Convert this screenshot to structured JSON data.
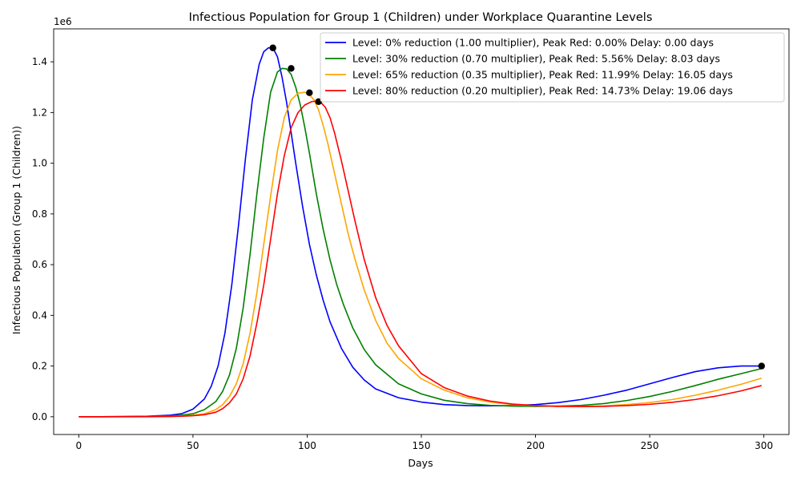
{
  "chart_data": {
    "type": "line",
    "title": "Infectious Population for Group 1 (Children) under Workplace Quarantine Levels",
    "xlabel": "Days",
    "ylabel": "Infectious Population (Group 1 (Children))",
    "y_offset_text": "1e6",
    "xlim": [
      -11,
      311
    ],
    "ylim": [
      -70000,
      1530000
    ],
    "x_ticks": [
      0,
      50,
      100,
      150,
      200,
      250,
      300
    ],
    "x_tick_labels": [
      "0",
      "50",
      "100",
      "150",
      "200",
      "250",
      "300"
    ],
    "y_ticks": [
      0,
      200000,
      400000,
      600000,
      800000,
      1000000,
      1200000,
      1400000
    ],
    "y_tick_labels": [
      "0.0",
      "0.2",
      "0.4",
      "0.6",
      "0.8",
      "1.0",
      "1.2",
      "1.4"
    ],
    "grid": false,
    "legend_position": "top-right",
    "series": [
      {
        "name": "Level: 0% reduction (1.00 multiplier), Peak Red: 0.00% Delay: 0.00 days",
        "color": "#0000ff",
        "x": [
          0,
          10,
          20,
          30,
          40,
          45,
          50,
          55,
          58,
          61,
          64,
          67,
          70,
          73,
          76,
          79,
          81,
          83,
          85,
          87,
          89,
          91,
          93,
          95,
          98,
          101,
          104,
          107,
          110,
          115,
          120,
          125,
          130,
          140,
          150,
          160,
          170,
          180,
          190,
          200,
          210,
          220,
          230,
          240,
          250,
          260,
          270,
          280,
          290,
          299
        ],
        "y": [
          0,
          0,
          1000,
          2000,
          6000,
          12000,
          30000,
          70000,
          120000,
          200000,
          330000,
          520000,
          760000,
          1020000,
          1250000,
          1390000,
          1440000,
          1455000,
          1455000,
          1420000,
          1340000,
          1240000,
          1120000,
          1000000,
          830000,
          680000,
          560000,
          460000,
          375000,
          270000,
          195000,
          145000,
          110000,
          75000,
          58000,
          48000,
          44000,
          43000,
          44000,
          48000,
          56000,
          68000,
          85000,
          105000,
          130000,
          155000,
          178000,
          193000,
          200000,
          200000
        ]
      },
      {
        "name": "Level: 30% reduction (0.70 multiplier), Peak Red: 5.56% Delay: 8.03 days",
        "color": "#008000",
        "x": [
          0,
          10,
          20,
          30,
          40,
          45,
          50,
          55,
          60,
          63,
          66,
          69,
          72,
          75,
          78,
          81,
          84,
          87,
          89,
          91,
          93,
          95,
          97,
          99,
          101,
          104,
          107,
          110,
          113,
          116,
          120,
          125,
          130,
          140,
          150,
          160,
          170,
          180,
          190,
          200,
          210,
          220,
          230,
          240,
          250,
          260,
          270,
          280,
          290,
          299
        ],
        "y": [
          0,
          0,
          500,
          1000,
          3000,
          6000,
          12000,
          28000,
          60000,
          100000,
          165000,
          270000,
          430000,
          640000,
          880000,
          1100000,
          1280000,
          1360000,
          1374000,
          1372000,
          1350000,
          1300000,
          1230000,
          1140000,
          1040000,
          880000,
          740000,
          620000,
          520000,
          440000,
          350000,
          265000,
          205000,
          130000,
          90000,
          65000,
          52000,
          45000,
          42000,
          41000,
          42000,
          45000,
          52000,
          64000,
          80000,
          100000,
          123000,
          148000,
          170000,
          190000
        ]
      },
      {
        "name": "Level: 65% reduction (0.35 multiplier), Peak Red: 11.99% Delay: 16.05 days",
        "color": "#ffa500",
        "x": [
          0,
          10,
          20,
          30,
          40,
          45,
          50,
          55,
          60,
          63,
          66,
          69,
          72,
          75,
          78,
          81,
          84,
          87,
          90,
          93,
          96,
          99,
          101,
          103,
          105,
          107,
          109,
          112,
          115,
          118,
          121,
          125,
          130,
          135,
          140,
          150,
          160,
          170,
          180,
          190,
          200,
          210,
          220,
          230,
          240,
          250,
          260,
          270,
          280,
          290,
          299
        ],
        "y": [
          0,
          0,
          0,
          500,
          1500,
          3000,
          6000,
          12000,
          28000,
          48000,
          80000,
          130000,
          210000,
          330000,
          490000,
          680000,
          870000,
          1050000,
          1180000,
          1250000,
          1276000,
          1280000,
          1270000,
          1250000,
          1210000,
          1150000,
          1080000,
          960000,
          840000,
          720000,
          620000,
          500000,
          380000,
          290000,
          230000,
          150000,
          105000,
          75000,
          58000,
          48000,
          43000,
          41000,
          41000,
          43000,
          48000,
          56000,
          68000,
          85000,
          105000,
          128000,
          152000
        ]
      },
      {
        "name": "Level: 80% reduction (0.20 multiplier), Peak Red: 14.73% Delay: 19.06 days",
        "color": "#ff0000",
        "x": [
          0,
          10,
          20,
          30,
          40,
          45,
          50,
          55,
          60,
          63,
          66,
          69,
          72,
          75,
          78,
          81,
          84,
          87,
          90,
          93,
          96,
          99,
          102,
          104,
          105,
          106,
          108,
          110,
          112,
          115,
          118,
          121,
          125,
          130,
          135,
          140,
          150,
          160,
          170,
          180,
          190,
          200,
          210,
          220,
          230,
          240,
          250,
          260,
          270,
          280,
          290,
          299
        ],
        "y": [
          0,
          0,
          0,
          0,
          1000,
          2000,
          4000,
          8000,
          18000,
          32000,
          55000,
          90000,
          150000,
          240000,
          370000,
          520000,
          700000,
          880000,
          1030000,
          1140000,
          1200000,
          1230000,
          1243000,
          1245000,
          1244000,
          1240000,
          1220000,
          1180000,
          1120000,
          1010000,
          890000,
          770000,
          620000,
          470000,
          360000,
          280000,
          170000,
          115000,
          82000,
          62000,
          50000,
          44000,
          41000,
          40000,
          41000,
          44000,
          49000,
          57000,
          68000,
          83000,
          102000,
          123000
        ]
      }
    ],
    "markers": [
      {
        "x": 85,
        "y": 1455000
      },
      {
        "x": 93,
        "y": 1374000
      },
      {
        "x": 101,
        "y": 1278000
      },
      {
        "x": 105,
        "y": 1243000
      },
      {
        "x": 299,
        "y": 200000
      }
    ]
  }
}
